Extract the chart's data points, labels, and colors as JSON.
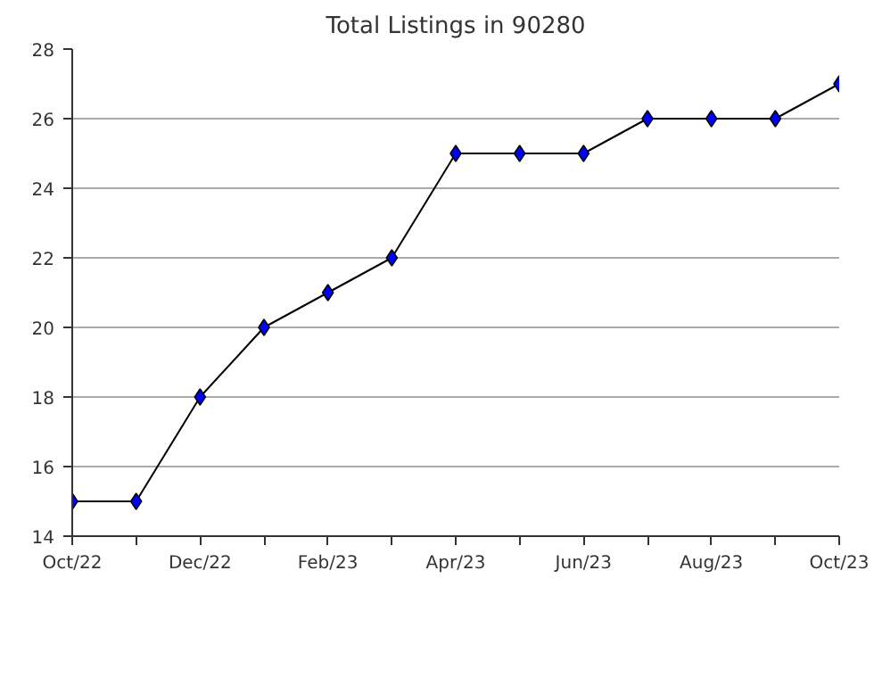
{
  "chart_data": {
    "type": "line",
    "title": "Total Listings in 90280",
    "categories": [
      "Oct/22",
      null,
      "Dec/22",
      null,
      "Feb/23",
      null,
      "Apr/23",
      null,
      "Jun/23",
      null,
      "Aug/23",
      null,
      "Oct/23"
    ],
    "series": [
      {
        "color": "#0000ff",
        "values": [
          15,
          15,
          18,
          20,
          21,
          22,
          25,
          25,
          25,
          26,
          26,
          26,
          27
        ]
      }
    ],
    "ylim": [
      14,
      28
    ],
    "yticks": [
      14,
      16,
      18,
      20,
      22,
      24,
      26,
      28
    ],
    "grid": "y",
    "marker": "diamond",
    "line_style": "solid"
  }
}
